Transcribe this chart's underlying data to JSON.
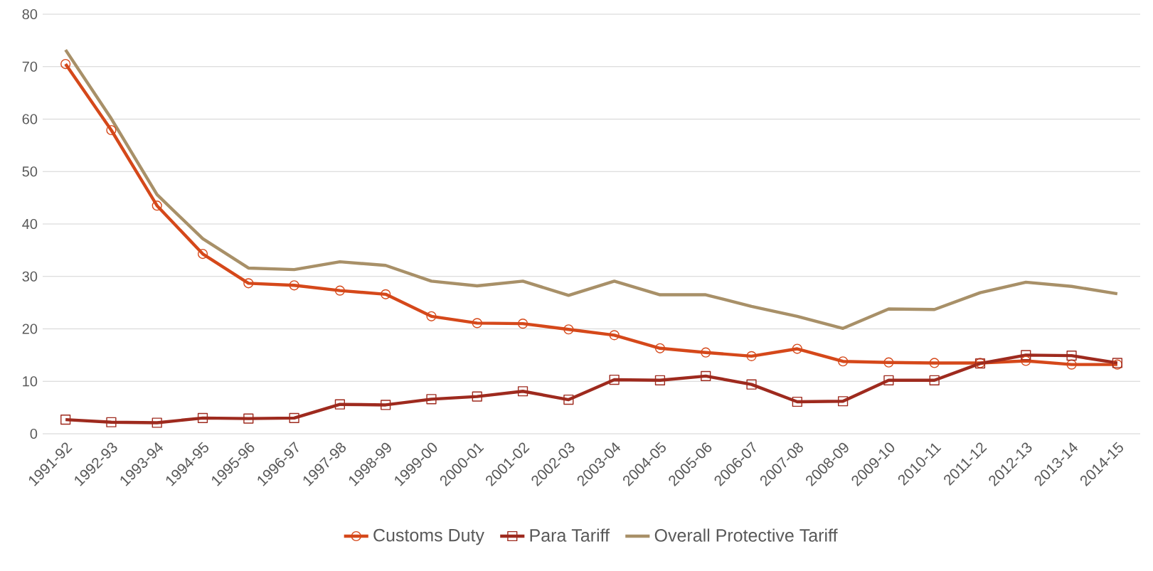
{
  "chart_data": {
    "type": "line",
    "categories": [
      "1991-92",
      "1992-93",
      "1993-94",
      "1994-95",
      "1995-96",
      "1996-97",
      "1997-98",
      "1998-99",
      "1999-00",
      "2000-01",
      "2001-02",
      "2002-03",
      "2003-04",
      "2004-05",
      "2005-06",
      "2006-07",
      "2007-08",
      "2008-09",
      "2009-10",
      "2010-11",
      "2011-12",
      "2012-13",
      "2013-14",
      "2014-15"
    ],
    "series": [
      {
        "name": "Customs Duty",
        "color": "#d5481a",
        "marker": "circle",
        "values": [
          70.5,
          57.9,
          43.5,
          34.3,
          28.7,
          28.3,
          27.3,
          26.6,
          22.4,
          21.1,
          21.0,
          19.9,
          18.8,
          16.3,
          15.5,
          14.8,
          16.2,
          13.8,
          13.6,
          13.5,
          13.5,
          13.9,
          13.2,
          13.2
        ]
      },
      {
        "name": "Para Tariff",
        "color": "#9e2a1e",
        "marker": "square",
        "values": [
          2.7,
          2.2,
          2.1,
          3.0,
          2.9,
          3.0,
          5.6,
          5.5,
          6.6,
          7.1,
          8.1,
          6.5,
          10.3,
          10.2,
          11.0,
          9.4,
          6.1,
          6.2,
          10.2,
          10.2,
          13.4,
          15.0,
          14.9,
          13.5
        ]
      },
      {
        "name": "Overall Protective Tariff",
        "color": "#a89068",
        "marker": "none",
        "values": [
          73.2,
          60.1,
          45.6,
          37.2,
          31.6,
          31.3,
          32.8,
          32.1,
          29.1,
          28.2,
          29.1,
          26.4,
          29.1,
          26.5,
          26.5,
          24.3,
          22.4,
          20.1,
          23.8,
          23.7,
          26.9,
          28.9,
          28.1,
          26.7
        ]
      }
    ],
    "ylim": [
      0,
      80
    ],
    "yticks": [
      0,
      10,
      20,
      30,
      40,
      50,
      60,
      70,
      80
    ],
    "grid": "y",
    "legend": "bottom",
    "line_style": "solid"
  }
}
